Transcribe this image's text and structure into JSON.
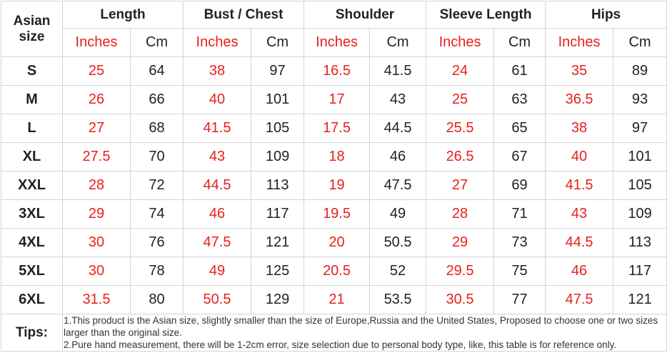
{
  "header": {
    "size_label": "Asian size",
    "groups": [
      "Length",
      "Bust / Chest",
      "Shoulder",
      "Sleeve Length",
      "Hips"
    ],
    "subheaders": [
      "Inches",
      "Cm",
      "Inches",
      "Cm",
      "Inches",
      "Cm",
      "Inches",
      "Cm",
      "Inches",
      "Cm"
    ]
  },
  "table": {
    "rows": [
      [
        "S",
        25,
        64,
        38,
        97,
        16.5,
        41.5,
        24,
        61,
        35,
        89
      ],
      [
        "M",
        26,
        66,
        40,
        101,
        17,
        43,
        25,
        63,
        36.5,
        93
      ],
      [
        "L",
        27,
        68,
        41.5,
        105,
        17.5,
        44.5,
        25.5,
        65,
        38,
        97
      ],
      [
        "XL",
        27.5,
        70,
        43,
        109,
        18,
        46,
        26.5,
        67,
        40,
        101
      ],
      [
        "XXL",
        28,
        72,
        44.5,
        113,
        19,
        47.5,
        27,
        69,
        41.5,
        105
      ],
      [
        "3XL",
        29,
        74,
        46,
        117,
        19.5,
        49,
        28,
        71,
        43,
        109
      ],
      [
        "4XL",
        30,
        76,
        47.5,
        121,
        20,
        50.5,
        29,
        73,
        44.5,
        113
      ],
      [
        "5XL",
        30,
        78,
        49,
        125,
        20.5,
        52,
        29.5,
        75,
        46,
        117
      ],
      [
        "6XL",
        31.5,
        80,
        50.5,
        129,
        21,
        53.5,
        30.5,
        77,
        47.5,
        121
      ]
    ]
  },
  "tips": {
    "label": "Tips:",
    "lines": [
      "1.This product is the Asian size, slightly smaller than the size of Europe,Russia and the United States, Proposed to choose one or two sizes larger than the original size.",
      "2.Pure hand measurement, there will be 1-2cm error, size selection due to personal body type, like, this table is for reference only."
    ]
  }
}
